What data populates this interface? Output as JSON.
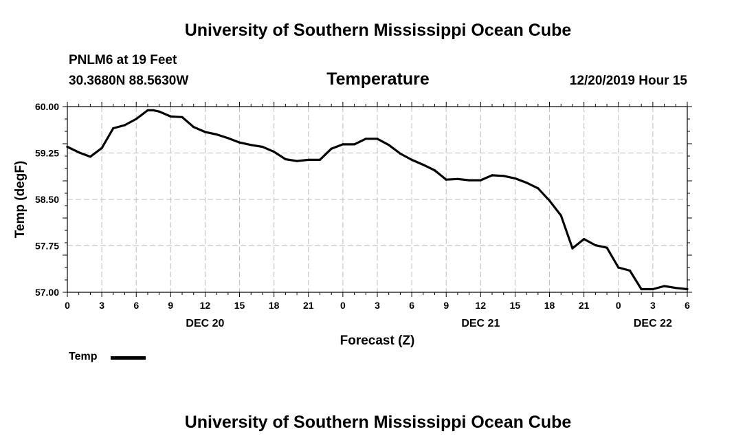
{
  "header": {
    "title": "University of Southern Mississippi Ocean Cube",
    "station": "PNLM6 at 19 Feet",
    "coords": "30.3680N 88.5630W",
    "variable": "Temperature",
    "datetime": "12/20/2019 Hour 15"
  },
  "footer": {
    "title": "University of Southern Mississippi Ocean Cube"
  },
  "legend": {
    "label": "Temp",
    "color": "#000000"
  },
  "chart_data": {
    "type": "line",
    "title": "Temperature",
    "xlabel": "Forecast (Z)",
    "ylabel": "Temp (degF)",
    "xlim": [
      0,
      54
    ],
    "ylim": [
      57.0,
      60.0
    ],
    "grid": true,
    "x_ticks": [
      0,
      3,
      6,
      9,
      12,
      15,
      18,
      21,
      24,
      27,
      30,
      33,
      36,
      39,
      42,
      45,
      48,
      51,
      54
    ],
    "x_tick_labels": [
      "0",
      "3",
      "6",
      "9",
      "12",
      "15",
      "18",
      "21",
      "0",
      "3",
      "6",
      "9",
      "12",
      "15",
      "18",
      "21",
      "0",
      "3",
      "6"
    ],
    "y_ticks": [
      57.0,
      57.75,
      58.5,
      59.25,
      60.0
    ],
    "y_tick_labels": [
      "57.00",
      "57.75",
      "58.50",
      "59.25",
      "60.00"
    ],
    "date_labels": [
      {
        "x": 12,
        "label": "DEC 20"
      },
      {
        "x": 36,
        "label": "DEC 21"
      },
      {
        "x": 51,
        "label": "DEC 22"
      }
    ],
    "series": [
      {
        "name": "Temp",
        "x": [
          0,
          1,
          2,
          3,
          4,
          5,
          6,
          7,
          7.5,
          8,
          9,
          10,
          11,
          12,
          13,
          14,
          15,
          16,
          17,
          18,
          19,
          20,
          21,
          22,
          23,
          24,
          25,
          26,
          27,
          28,
          29,
          30,
          31,
          32,
          33,
          34,
          35,
          36,
          37,
          38,
          39,
          40,
          41,
          42,
          43,
          44,
          45,
          46,
          47,
          48,
          49,
          50,
          51,
          52,
          53,
          54
        ],
        "values": [
          59.35,
          59.26,
          59.19,
          59.33,
          59.65,
          59.7,
          59.8,
          59.94,
          59.94,
          59.92,
          59.84,
          59.83,
          59.67,
          59.59,
          59.55,
          59.49,
          59.42,
          59.38,
          59.35,
          59.27,
          59.15,
          59.12,
          59.14,
          59.14,
          59.32,
          59.39,
          59.39,
          59.48,
          59.48,
          59.38,
          59.24,
          59.14,
          59.06,
          58.97,
          58.82,
          58.83,
          58.81,
          58.81,
          58.89,
          58.88,
          58.84,
          58.77,
          58.68,
          58.48,
          58.24,
          57.71,
          57.86,
          57.76,
          57.72,
          57.4,
          57.35,
          57.05,
          57.05,
          57.1,
          57.07,
          57.05
        ]
      }
    ]
  }
}
